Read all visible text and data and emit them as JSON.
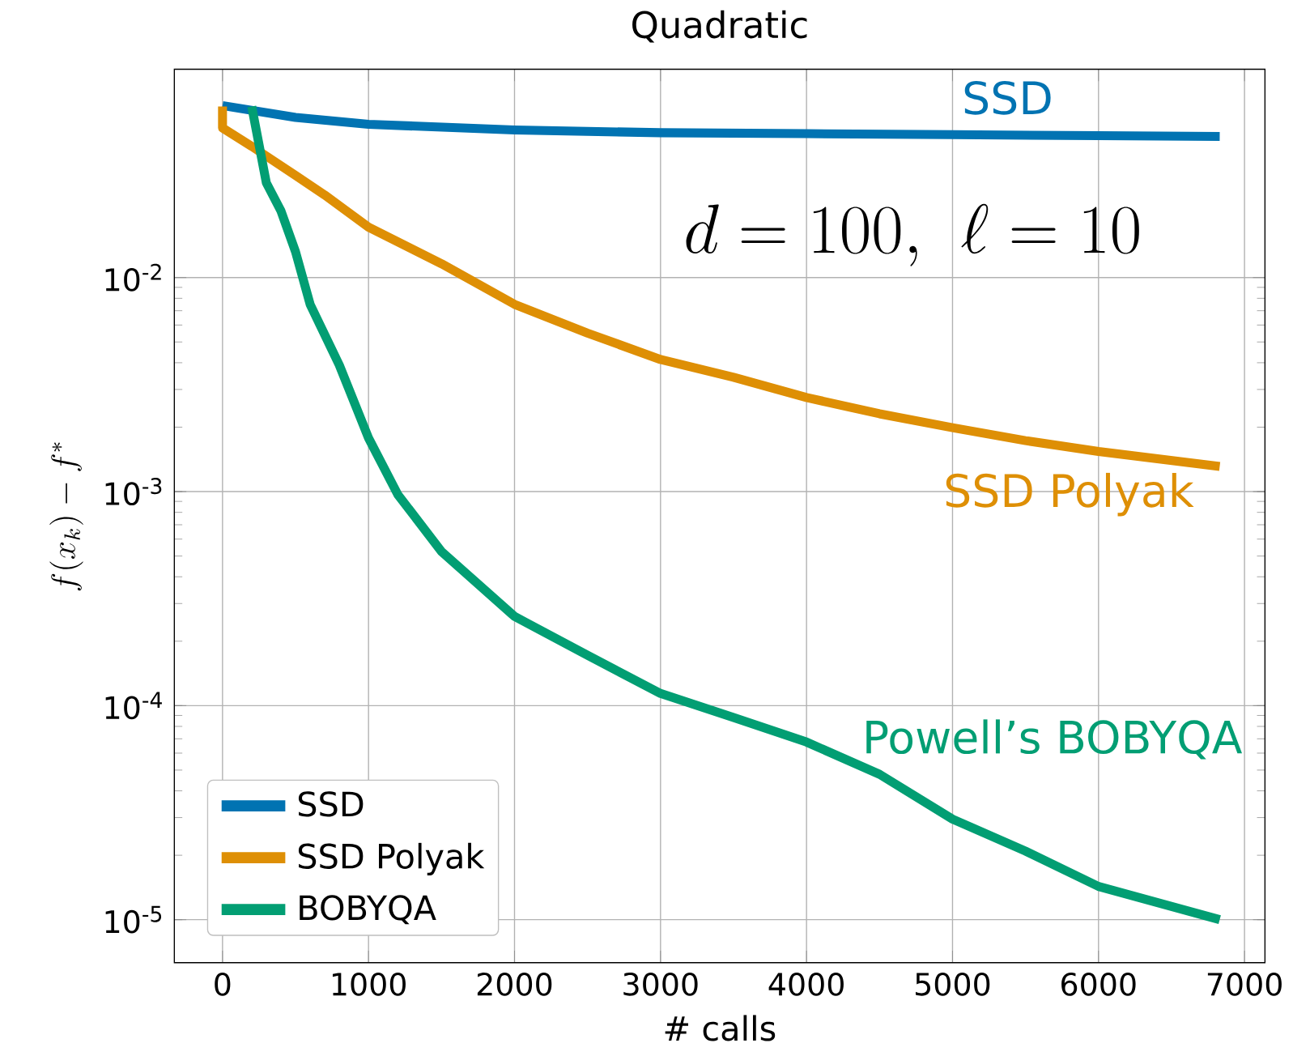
{
  "chart_data": {
    "type": "line",
    "title": "Quadratic",
    "xlabel": "# calls",
    "ylabel": "f(x_k) - f^*",
    "log": "y",
    "grid": true,
    "legend": "bottom left",
    "line_style": "solid",
    "marker": "none",
    "xlim": [
      -330,
      7140
    ],
    "ylim": [
      6.3e-06,
      0.094
    ],
    "xticks": [
      0,
      1000,
      2000,
      3000,
      4000,
      5000,
      6000,
      7000
    ],
    "yticks": [
      {
        "value": 1e-05,
        "label": "10$^{-5}$"
      },
      {
        "value": 0.0001,
        "label": "10$^{-4}$"
      },
      {
        "value": 0.001,
        "label": "10$^{-3}$"
      },
      {
        "value": 0.01,
        "label": "10$^{-2}$"
      }
    ],
    "series": [
      {
        "name": "SSD",
        "color": "#0173b2",
        "x": [
          0,
          500,
          1000,
          2000,
          3000,
          4000,
          5000,
          6000,
          6830
        ],
        "values": [
          0.0636,
          0.056,
          0.052,
          0.0489,
          0.0475,
          0.047,
          0.0465,
          0.046,
          0.0456
        ]
      },
      {
        "name": "SSD Polyak",
        "color": "#de8f05",
        "x": [
          0,
          0,
          200,
          500,
          700,
          1000,
          1500,
          2000,
          2500,
          3000,
          3500,
          4000,
          4500,
          5000,
          5500,
          6000,
          6830
        ],
        "values": [
          0.063,
          0.05,
          0.041,
          0.03,
          0.0243,
          0.0172,
          0.0116,
          0.0075,
          0.0055,
          0.00414,
          0.00342,
          0.00275,
          0.00231,
          0.00199,
          0.00173,
          0.00154,
          0.00131
        ]
      },
      {
        "name": "BOBYQA",
        "color": "#029e73",
        "x": [
          200,
          300,
          400,
          500,
          600,
          800,
          1000,
          1200,
          1500,
          2000,
          2500,
          3000,
          3500,
          4000,
          4500,
          5000,
          5500,
          6000,
          6830
        ],
        "values": [
          0.063,
          0.0277,
          0.0205,
          0.0132,
          0.0075,
          0.0039,
          0.00178,
          0.00097,
          0.000525,
          0.000261,
          0.000172,
          0.000114,
          8.8e-05,
          6.76e-05,
          4.78e-05,
          2.95e-05,
          2.09e-05,
          1.43e-05,
          1e-05
        ]
      }
    ],
    "annotations": [
      "SSD",
      "SSD Polyak",
      "Powell’s BOBYQA",
      "d = 100,\\ \\ell = 10"
    ]
  }
}
